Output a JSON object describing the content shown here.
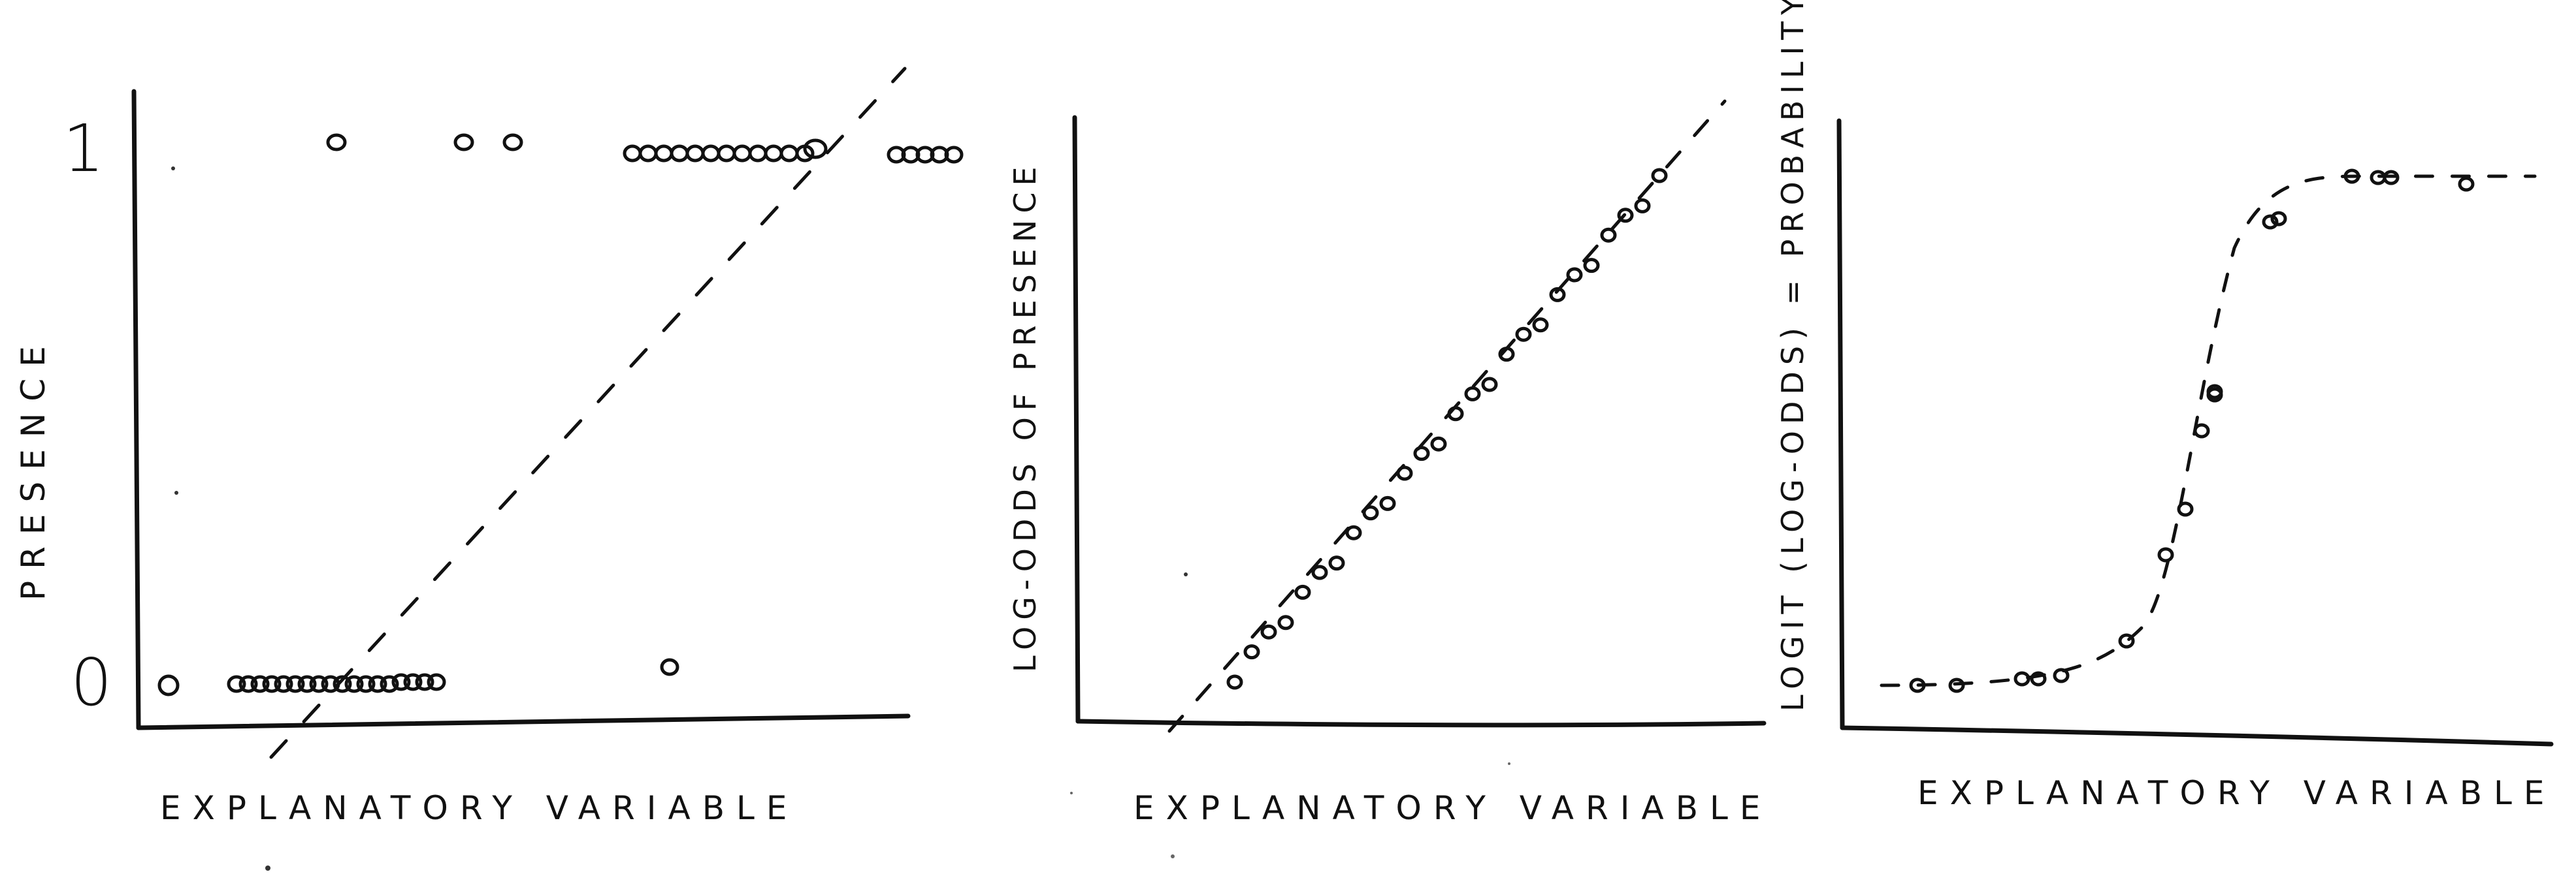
{
  "panels": [
    {
      "id": "panel-presence",
      "ylabel": "PRESENCE",
      "xlabel": "EXPLANATORY  VARIABLE",
      "ytick_top": "1",
      "ytick_bottom": "0"
    },
    {
      "id": "panel-logodds",
      "ylabel": "LOG-ODDS  OF  PRESENCE",
      "xlabel": "EXPLANATORY  VARIABLE"
    },
    {
      "id": "panel-probability",
      "ylabel": "LOGIT (LOG-ODDS) = PROBABILITY",
      "xlabel": "EXPLANATORY  VARIABLE"
    }
  ],
  "colors": {
    "ink": "#111111",
    "paper": "#ffffff"
  }
}
